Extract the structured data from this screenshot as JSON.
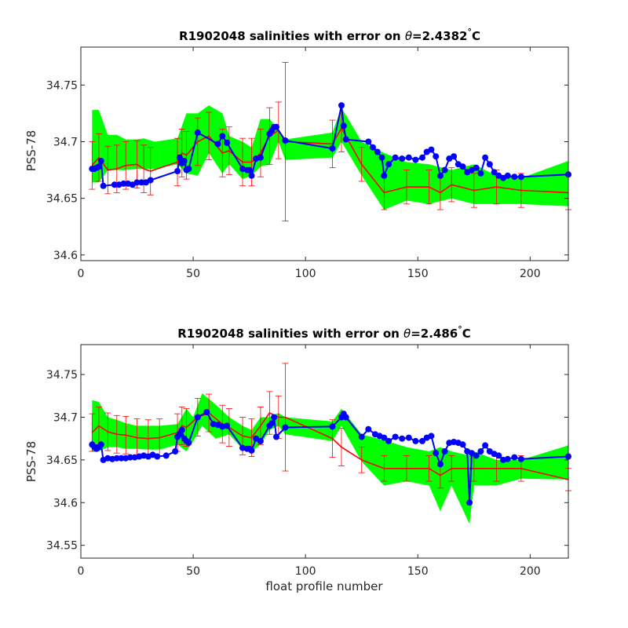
{
  "chart_data": [
    {
      "type": "line",
      "title_prefix": "R1902048 salinities with error on ",
      "title_symbol": "θ",
      "title_value": "=2.4382",
      "title_degree": "°",
      "title_unit": "C",
      "ylabel": "PSS-78",
      "xlabel": "",
      "xlim": [
        0,
        217
      ],
      "ylim": [
        34.595,
        34.7835
      ],
      "xticks": [
        0,
        50,
        100,
        150,
        200
      ],
      "yticks": [
        34.6,
        34.65,
        34.7,
        34.75
      ],
      "ytick_labels": [
        "34.6",
        "34.65",
        "34.7",
        "34.75"
      ],
      "grid": false,
      "colors": {
        "float": "#0000ff",
        "mapped": "#ff0000",
        "error_band": "#00ff00"
      },
      "band": {
        "x": [
          5,
          8,
          12,
          16,
          20,
          25,
          28,
          33,
          43,
          47,
          52,
          57,
          63,
          66,
          72,
          76,
          80,
          84,
          88,
          91,
          112,
          116,
          125,
          135,
          145,
          155,
          165,
          175,
          185,
          196,
          217
        ],
        "upper": [
          34.728,
          34.728,
          34.706,
          34.706,
          34.702,
          34.702,
          34.703,
          34.7,
          34.703,
          34.725,
          34.725,
          34.732,
          34.725,
          34.705,
          34.7,
          34.695,
          34.72,
          34.72,
          34.71,
          34.702,
          34.708,
          34.73,
          34.7,
          34.69,
          34.682,
          34.68,
          34.675,
          34.68,
          34.67,
          34.668,
          34.683
        ],
        "lower": [
          34.664,
          34.664,
          34.675,
          34.675,
          34.675,
          34.676,
          34.676,
          34.676,
          34.68,
          34.672,
          34.67,
          34.69,
          34.672,
          34.68,
          34.667,
          34.67,
          34.678,
          34.68,
          34.7,
          34.684,
          34.686,
          34.7,
          34.67,
          34.64,
          34.648,
          34.645,
          34.65,
          34.645,
          34.645,
          34.645,
          34.643
        ]
      },
      "mapped": {
        "x": [
          5,
          8,
          12,
          16,
          20,
          25,
          28,
          31,
          43,
          45,
          47,
          52,
          57,
          63,
          66,
          72,
          76,
          80,
          84,
          88,
          91,
          112,
          116,
          125,
          135,
          145,
          155,
          160,
          165,
          175,
          185,
          196,
          217
        ],
        "y": [
          34.679,
          34.686,
          34.675,
          34.676,
          34.679,
          34.68,
          34.676,
          34.674,
          34.682,
          34.69,
          34.688,
          34.7,
          34.705,
          34.69,
          34.692,
          34.682,
          34.682,
          34.69,
          34.705,
          34.71,
          34.7,
          34.698,
          34.712,
          34.68,
          34.655,
          34.66,
          34.66,
          34.655,
          34.662,
          34.657,
          34.66,
          34.657,
          34.655
        ],
        "err": [
          0.021,
          0.021,
          0.021,
          0.021,
          0.021,
          0.021,
          0.021,
          0.021,
          0.021,
          0.021,
          0.021,
          0.021,
          0.021,
          0.021,
          0.021,
          0.021,
          0.021,
          0.021,
          0.025,
          0.025,
          0.07,
          0.021,
          0.021,
          0.015,
          0.015,
          0.015,
          0.015,
          0.015,
          0.015,
          0.015,
          0.015,
          0.015,
          0.015
        ]
      },
      "float": {
        "x": [
          5,
          6,
          7,
          8,
          9,
          10,
          15,
          17,
          19,
          21,
          23,
          25,
          27,
          29,
          31,
          43,
          44,
          45,
          46,
          47,
          48,
          52,
          61,
          63,
          65,
          72,
          74,
          75,
          76,
          78,
          80,
          84,
          85,
          86,
          87,
          91,
          112,
          116,
          117,
          118,
          128,
          130,
          132,
          134,
          135,
          137,
          140,
          143,
          146,
          149,
          152,
          154,
          156,
          158,
          160,
          162,
          164,
          166,
          168,
          170,
          172,
          174,
          176,
          178,
          180,
          182,
          184,
          186,
          188,
          190,
          193,
          196,
          217
        ],
        "y": [
          34.676,
          34.676,
          34.677,
          34.678,
          34.683,
          34.661,
          34.662,
          34.662,
          34.663,
          34.663,
          34.662,
          34.664,
          34.664,
          34.664,
          34.666,
          34.674,
          34.686,
          34.681,
          34.683,
          34.675,
          34.676,
          34.708,
          34.698,
          34.705,
          34.699,
          34.676,
          34.675,
          34.675,
          34.67,
          34.685,
          34.686,
          34.707,
          34.71,
          34.713,
          34.713,
          34.701,
          34.694,
          34.732,
          34.714,
          34.702,
          34.7,
          34.695,
          34.691,
          34.686,
          34.67,
          34.68,
          34.686,
          34.685,
          34.686,
          34.684,
          34.686,
          34.691,
          34.693,
          34.687,
          34.67,
          34.675,
          34.685,
          34.687,
          34.68,
          34.678,
          34.673,
          34.675,
          34.677,
          34.672,
          34.686,
          34.68,
          34.673,
          34.67,
          34.668,
          34.67,
          34.669,
          34.669,
          34.671
        ]
      }
    },
    {
      "type": "line",
      "title_prefix": "R1902048 salinities with error on ",
      "title_symbol": "θ",
      "title_value": "=2.486",
      "title_degree": "°",
      "title_unit": "C",
      "ylabel": "PSS-78",
      "xlabel": "float profile number",
      "xlim": [
        0,
        217
      ],
      "ylim": [
        34.535,
        34.785
      ],
      "xticks": [
        0,
        50,
        100,
        150,
        200
      ],
      "yticks": [
        34.55,
        34.6,
        34.65,
        34.7,
        34.75
      ],
      "ytick_labels": [
        "34.55",
        "34.6",
        "34.65",
        "34.7",
        "34.75"
      ],
      "grid": false,
      "colors": {
        "float": "#0000ff",
        "mapped": "#ff0000",
        "error_band": "#00ff00"
      },
      "band": {
        "x": [
          5,
          8,
          12,
          16,
          20,
          25,
          30,
          35,
          43,
          47,
          50,
          54,
          60,
          66,
          72,
          76,
          80,
          84,
          88,
          91,
          112,
          116,
          125,
          135,
          145,
          155,
          160,
          165,
          173,
          175,
          185,
          196,
          217
        ],
        "upper": [
          34.72,
          34.718,
          34.7,
          34.697,
          34.693,
          34.69,
          34.69,
          34.69,
          34.692,
          34.71,
          34.7,
          34.728,
          34.715,
          34.7,
          34.69,
          34.685,
          34.7,
          34.7,
          34.705,
          34.7,
          34.695,
          34.71,
          34.68,
          34.673,
          34.665,
          34.66,
          34.665,
          34.66,
          34.655,
          34.66,
          34.65,
          34.65,
          34.667
        ],
        "lower": [
          34.66,
          34.66,
          34.665,
          34.665,
          34.663,
          34.663,
          34.662,
          34.662,
          34.668,
          34.66,
          34.672,
          34.69,
          34.675,
          34.68,
          34.663,
          34.66,
          34.668,
          34.685,
          34.69,
          34.68,
          34.672,
          34.69,
          34.648,
          34.62,
          34.625,
          34.62,
          34.59,
          34.62,
          34.575,
          34.62,
          34.62,
          34.628,
          34.627
        ]
      },
      "mapped": {
        "x": [
          5,
          8,
          12,
          16,
          20,
          25,
          30,
          35,
          43,
          45,
          47,
          52,
          57,
          63,
          66,
          72,
          76,
          80,
          84,
          88,
          91,
          112,
          116,
          125,
          135,
          145,
          155,
          160,
          165,
          175,
          185,
          196,
          217
        ],
        "y": [
          34.682,
          34.69,
          34.683,
          34.68,
          34.679,
          34.676,
          34.675,
          34.676,
          34.682,
          34.69,
          34.688,
          34.7,
          34.705,
          34.692,
          34.688,
          34.678,
          34.676,
          34.69,
          34.705,
          34.7,
          34.7,
          34.675,
          34.665,
          34.65,
          34.64,
          34.64,
          34.64,
          34.632,
          34.64,
          34.64,
          34.64,
          34.64,
          34.627
        ],
        "err": [
          0.022,
          0.022,
          0.022,
          0.022,
          0.022,
          0.022,
          0.022,
          0.022,
          0.022,
          0.022,
          0.022,
          0.022,
          0.022,
          0.022,
          0.022,
          0.022,
          0.022,
          0.022,
          0.025,
          0.025,
          0.063,
          0.022,
          0.022,
          0.015,
          0.015,
          0.015,
          0.015,
          0.015,
          0.015,
          0.015,
          0.015,
          0.015,
          0.013
        ]
      },
      "float": {
        "x": [
          5,
          6,
          7,
          8,
          9,
          10,
          12,
          14,
          16,
          18,
          20,
          22,
          24,
          26,
          28,
          30,
          32,
          34,
          38,
          42,
          43,
          44,
          45,
          46,
          47,
          48,
          52,
          56,
          59,
          61,
          63,
          65,
          72,
          74,
          75,
          76,
          78,
          80,
          84,
          85,
          86,
          87,
          91,
          112,
          116,
          117,
          118,
          125,
          128,
          131,
          133,
          135,
          137,
          140,
          143,
          146,
          149,
          152,
          154,
          156,
          158,
          160,
          162,
          164,
          166,
          168,
          170,
          172,
          173,
          174,
          176,
          178,
          180,
          182,
          184,
          186,
          188,
          190,
          193,
          196,
          217
        ],
        "y": [
          34.668,
          34.665,
          34.663,
          34.665,
          34.668,
          34.65,
          34.652,
          34.651,
          34.652,
          34.652,
          34.652,
          34.653,
          34.653,
          34.654,
          34.655,
          34.654,
          34.656,
          34.654,
          34.655,
          34.66,
          34.677,
          34.68,
          34.685,
          34.675,
          34.672,
          34.67,
          34.7,
          34.706,
          34.692,
          34.691,
          34.689,
          34.69,
          34.664,
          34.663,
          34.663,
          34.661,
          34.675,
          34.672,
          34.69,
          34.693,
          34.7,
          34.677,
          34.688,
          34.689,
          34.7,
          34.704,
          34.7,
          34.677,
          34.686,
          34.68,
          34.678,
          34.676,
          34.672,
          34.677,
          34.675,
          34.676,
          34.672,
          34.672,
          34.676,
          34.678,
          34.658,
          34.645,
          34.66,
          34.67,
          34.671,
          34.67,
          34.668,
          34.66,
          34.6,
          34.658,
          34.655,
          34.66,
          34.667,
          34.66,
          34.657,
          34.655,
          34.65,
          34.651,
          34.653,
          34.651,
          34.654
        ]
      }
    }
  ]
}
